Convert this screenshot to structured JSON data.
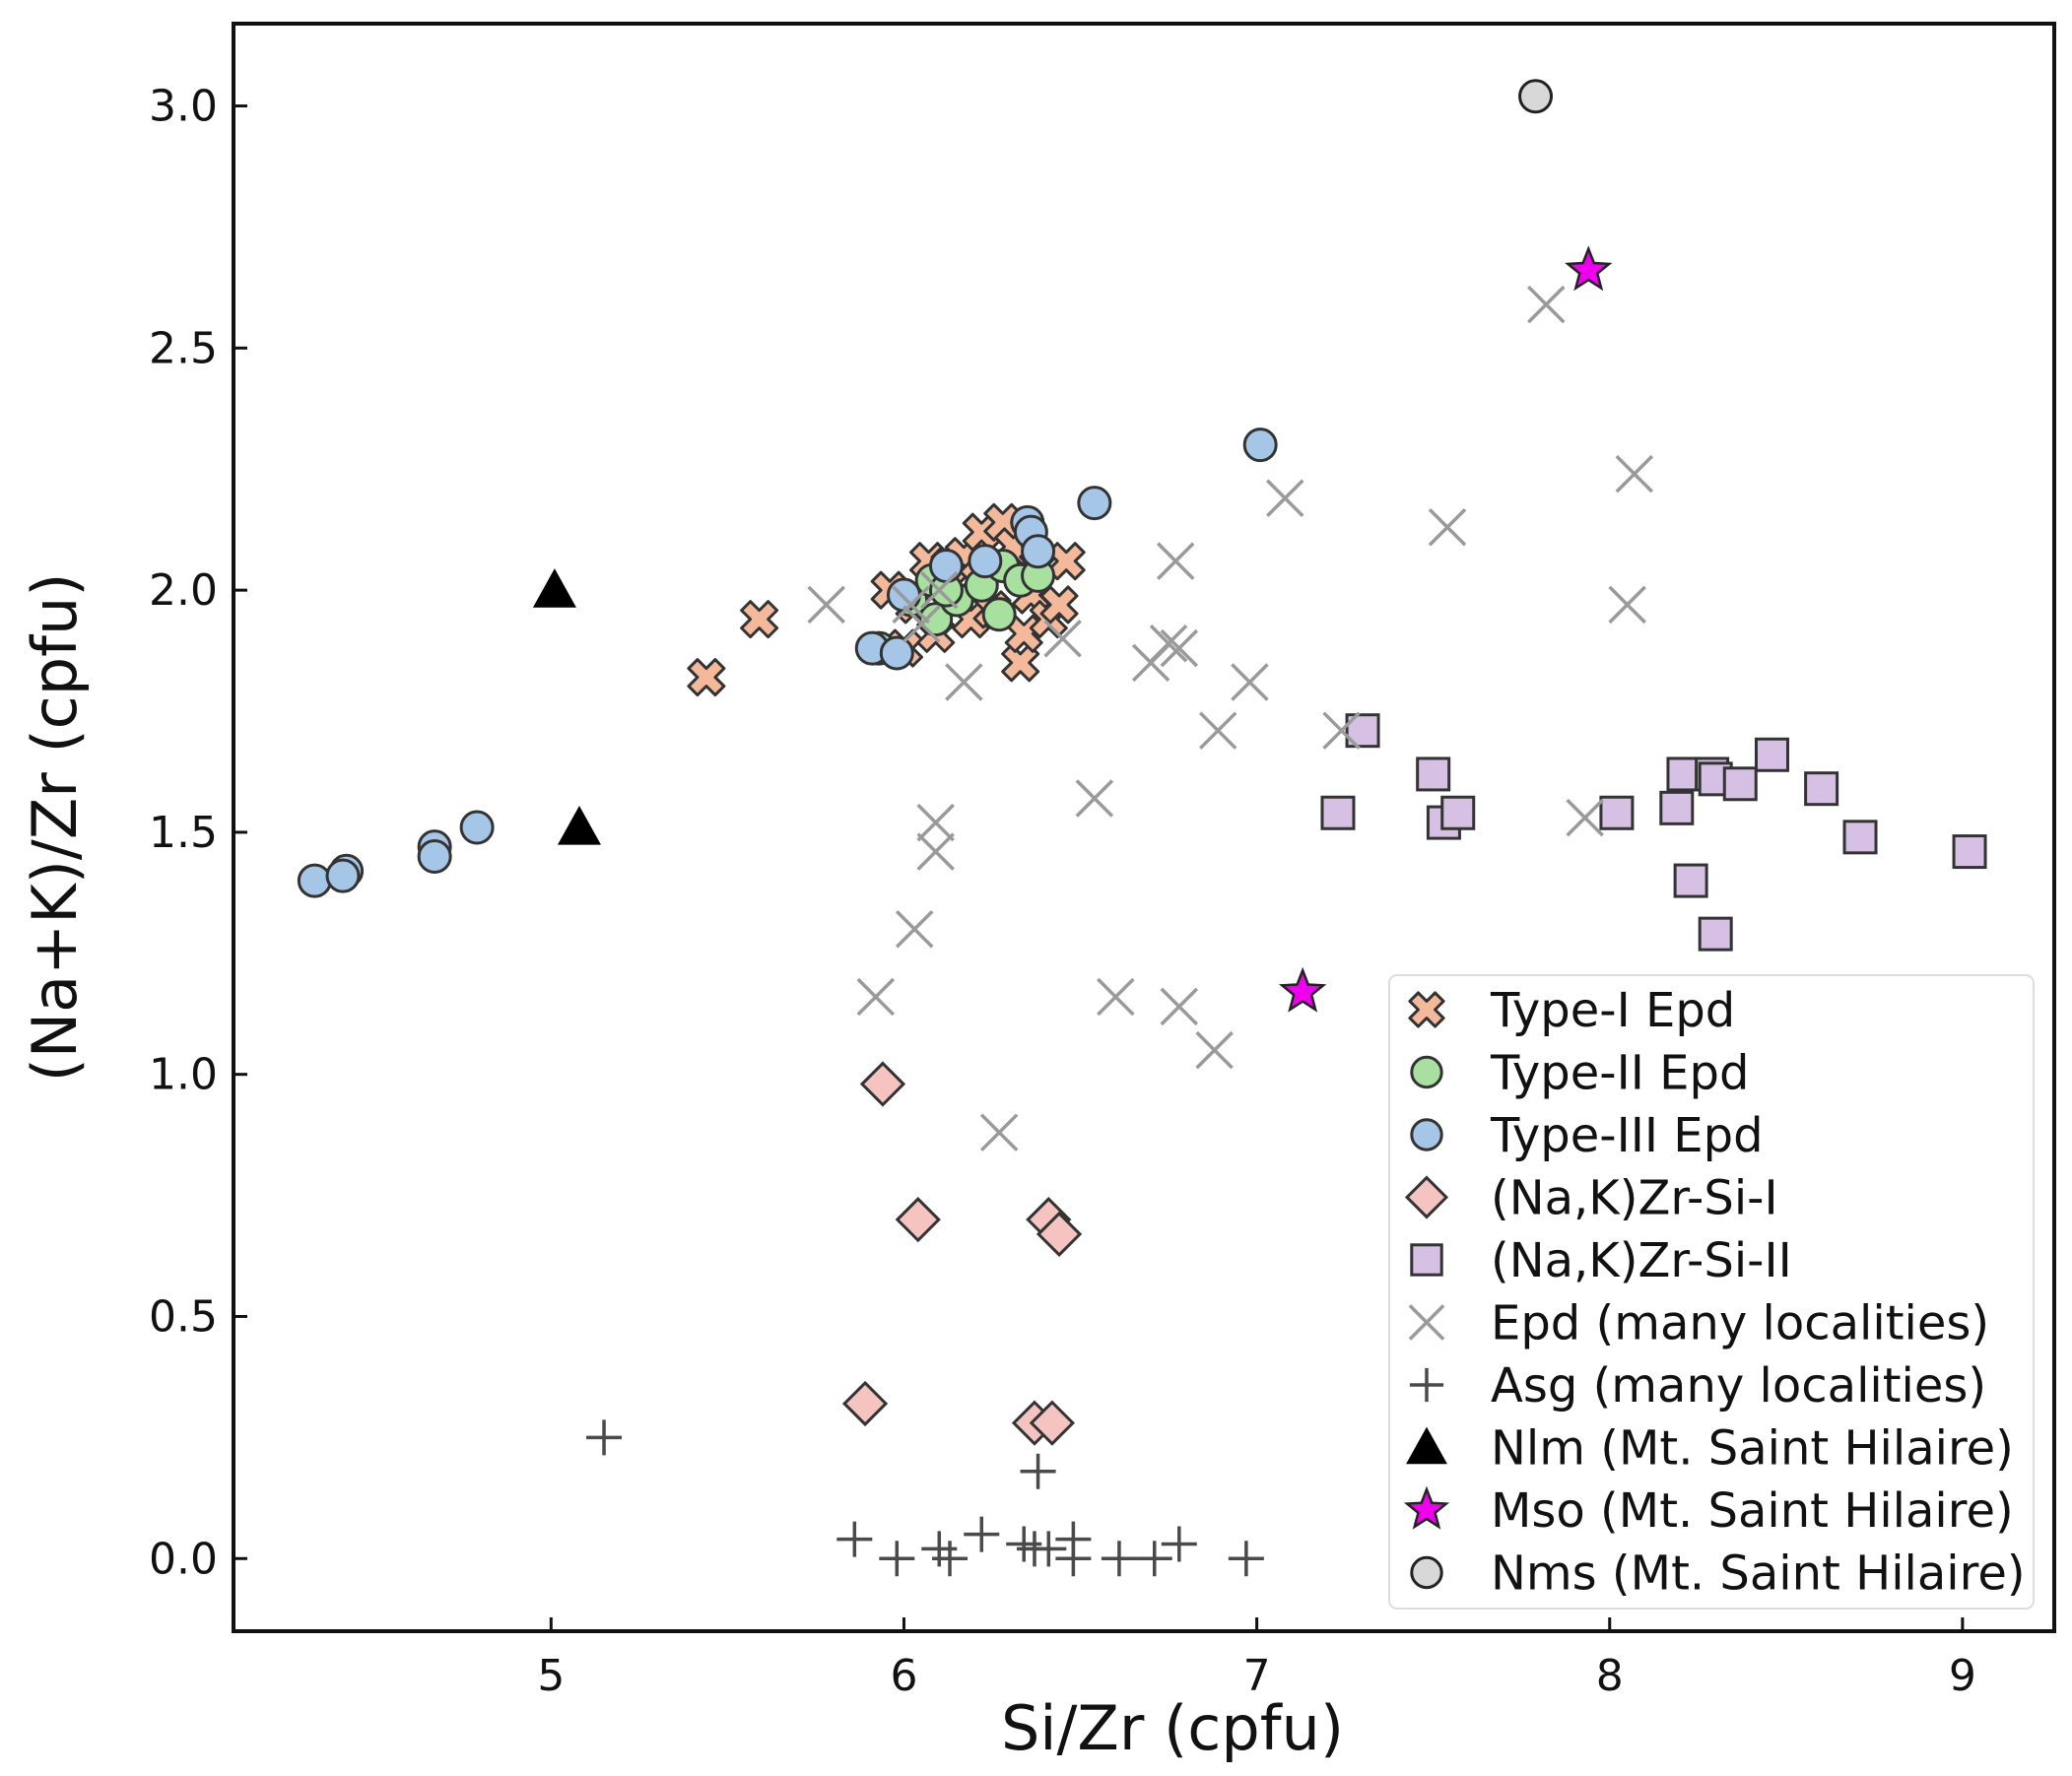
{
  "chart_data": {
    "type": "scatter",
    "title": "",
    "xlabel": "Si/Zr (cpfu)",
    "ylabel": "(Na+K)/Zr (cpfu)",
    "xlim": [
      4.1,
      9.26
    ],
    "ylim": [
      -0.15,
      3.17
    ],
    "xticks": [
      5,
      6,
      7,
      8,
      9
    ],
    "xtick_labels": [
      "5",
      "6",
      "7",
      "8",
      "9"
    ],
    "yticks": [
      0.0,
      0.5,
      1.0,
      1.5,
      2.0,
      2.5,
      3.0
    ],
    "ytick_labels": [
      "0.0",
      "0.5",
      "1.0",
      "1.5",
      "2.0",
      "2.5",
      "3.0"
    ],
    "grid": false,
    "legend_position": "bottom-right",
    "series": [
      {
        "name": "Type-I Epd",
        "marker": "X-filled",
        "color": "#f4b99a",
        "edge": "#333333",
        "points": [
          [
            5.44,
            1.82
          ],
          [
            5.59,
            1.94
          ],
          [
            5.96,
            2.0
          ],
          [
            6.0,
            1.88
          ],
          [
            6.07,
            2.06
          ],
          [
            6.09,
            1.91
          ],
          [
            6.13,
            2.05
          ],
          [
            6.17,
            2.07
          ],
          [
            6.19,
            1.94
          ],
          [
            6.22,
            2.12
          ],
          [
            6.25,
            1.96
          ],
          [
            6.28,
            2.14
          ],
          [
            6.31,
            2.09
          ],
          [
            6.33,
            1.85
          ],
          [
            6.34,
            1.91
          ],
          [
            6.36,
            1.99
          ],
          [
            6.38,
            2.05
          ],
          [
            6.41,
            1.94
          ],
          [
            6.44,
            1.97
          ],
          [
            6.46,
            2.06
          ],
          [
            6.21,
            2.02
          ],
          [
            6.03,
            1.97
          ]
        ]
      },
      {
        "name": "Type-II Epd",
        "marker": "circle",
        "color": "#a8e0a0",
        "edge": "#333333",
        "points": [
          [
            5.93,
            1.88
          ],
          [
            6.02,
            1.98
          ],
          [
            6.08,
            2.02
          ],
          [
            6.09,
            1.94
          ],
          [
            6.15,
            1.98
          ],
          [
            6.22,
            2.01
          ],
          [
            6.27,
            1.95
          ],
          [
            6.28,
            2.05
          ],
          [
            6.33,
            2.02
          ],
          [
            6.38,
            2.03
          ],
          [
            6.12,
            2.0
          ]
        ]
      },
      {
        "name": "Type-III Epd",
        "marker": "circle",
        "color": "#a6c6e8",
        "edge": "#333333",
        "points": [
          [
            4.33,
            1.4
          ],
          [
            4.42,
            1.42
          ],
          [
            4.41,
            1.41
          ],
          [
            4.67,
            1.47
          ],
          [
            4.67,
            1.45
          ],
          [
            4.79,
            1.51
          ],
          [
            5.91,
            1.88
          ],
          [
            5.98,
            1.87
          ],
          [
            6.0,
            1.99
          ],
          [
            6.12,
            2.05
          ],
          [
            6.23,
            2.06
          ],
          [
            6.35,
            2.14
          ],
          [
            6.36,
            2.12
          ],
          [
            6.38,
            2.08
          ],
          [
            6.54,
            2.18
          ],
          [
            7.01,
            2.3
          ]
        ]
      },
      {
        "name": "(Na,K)Zr-Si-I",
        "marker": "diamond",
        "color": "#f6c4c0",
        "edge": "#333333",
        "points": [
          [
            5.94,
            0.98
          ],
          [
            6.04,
            0.7
          ],
          [
            6.41,
            0.7
          ],
          [
            6.44,
            0.67
          ],
          [
            5.89,
            0.32
          ],
          [
            6.37,
            0.28
          ],
          [
            6.42,
            0.28
          ]
        ]
      },
      {
        "name": "(Na,K)Zr-Si-II",
        "marker": "square",
        "color": "#d6c0e4",
        "edge": "#333333",
        "points": [
          [
            7.23,
            1.54
          ],
          [
            7.3,
            1.71
          ],
          [
            7.5,
            1.62
          ],
          [
            7.53,
            1.52
          ],
          [
            7.57,
            1.54
          ],
          [
            8.02,
            1.54
          ],
          [
            8.19,
            1.55
          ],
          [
            8.21,
            1.62
          ],
          [
            8.23,
            1.4
          ],
          [
            8.29,
            1.62
          ],
          [
            8.3,
            1.61
          ],
          [
            8.3,
            1.29
          ],
          [
            8.37,
            1.6
          ],
          [
            8.46,
            1.66
          ],
          [
            8.6,
            1.59
          ],
          [
            8.71,
            1.49
          ],
          [
            9.02,
            1.46
          ]
        ]
      },
      {
        "name": "Epd (many localities)",
        "marker": "x",
        "color": "#9a9a9a",
        "points": [
          [
            5.78,
            1.97
          ],
          [
            5.92,
            1.16
          ],
          [
            6.02,
            1.97
          ],
          [
            6.03,
            1.3
          ],
          [
            6.09,
            1.52
          ],
          [
            6.09,
            1.46
          ],
          [
            6.17,
            1.81
          ],
          [
            6.27,
            0.88
          ],
          [
            6.45,
            1.9
          ],
          [
            6.54,
            1.57
          ],
          [
            6.6,
            1.16
          ],
          [
            6.7,
            1.85
          ],
          [
            6.75,
            1.89
          ],
          [
            6.77,
            2.06
          ],
          [
            6.78,
            1.14
          ],
          [
            6.78,
            1.88
          ],
          [
            6.88,
            1.05
          ],
          [
            6.89,
            1.71
          ],
          [
            6.98,
            1.81
          ],
          [
            7.08,
            2.19
          ],
          [
            7.24,
            1.71
          ],
          [
            7.54,
            2.13
          ],
          [
            7.82,
            2.59
          ],
          [
            7.93,
            1.53
          ],
          [
            8.05,
            1.97
          ],
          [
            8.07,
            2.24
          ],
          [
            6.1,
            2.0
          ],
          [
            6.05,
            1.93
          ]
        ]
      },
      {
        "name": "Asg (many localities)",
        "marker": "plus",
        "color": "#4a4a4a",
        "points": [
          [
            5.15,
            0.25
          ],
          [
            5.86,
            0.04
          ],
          [
            5.98,
            0.0
          ],
          [
            6.1,
            0.02
          ],
          [
            6.13,
            0.0
          ],
          [
            6.22,
            0.05
          ],
          [
            6.34,
            0.03
          ],
          [
            6.37,
            0.02
          ],
          [
            6.38,
            0.18
          ],
          [
            6.41,
            0.02
          ],
          [
            6.48,
            0.0
          ],
          [
            6.48,
            0.04
          ],
          [
            6.61,
            0.0
          ],
          [
            6.71,
            0.0
          ],
          [
            6.78,
            0.03
          ],
          [
            6.97,
            0.0
          ]
        ]
      },
      {
        "name": "Nlm (Mt. Saint Hilaire)",
        "marker": "triangle",
        "color": "#000000",
        "points": [
          [
            5.01,
            2.0
          ],
          [
            5.08,
            1.51
          ]
        ]
      },
      {
        "name": "Mso (Mt. Saint Hilaire)",
        "marker": "star",
        "color": "#ee00ee",
        "edge": "#222222",
        "points": [
          [
            7.13,
            1.17
          ],
          [
            7.94,
            2.66
          ]
        ]
      },
      {
        "name": "Nms (Mt. Saint Hilaire)",
        "marker": "circle",
        "color": "#d8d8d8",
        "edge": "#222222",
        "points": [
          [
            7.79,
            3.02
          ]
        ]
      }
    ]
  }
}
